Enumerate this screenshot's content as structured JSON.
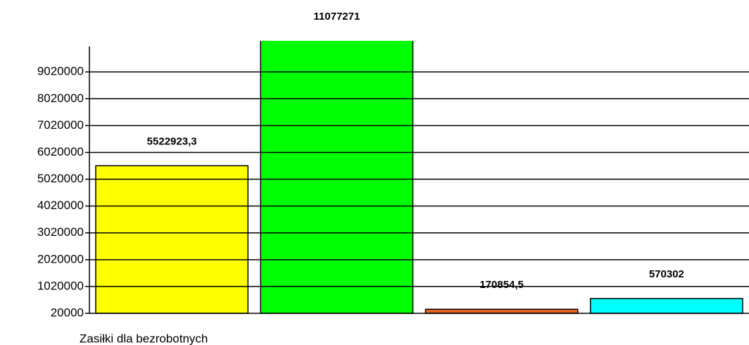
{
  "chart_data": {
    "type": "bar",
    "categories": [
      "Zasiłki dla bezrobotnych",
      null,
      null,
      null
    ],
    "values": [
      5522923.3,
      11077271,
      170854.5,
      570302
    ],
    "value_labels": [
      "5522923,3",
      "11077271",
      "170854,5",
      "570302"
    ],
    "colors": [
      "#ffff00",
      "#00ff00",
      "#e8641e",
      "#00ffff"
    ],
    "ylim": [
      20000,
      10180000
    ],
    "yticks": [
      20000,
      1020000,
      2020000,
      3020000,
      4020000,
      5020000,
      6020000,
      7020000,
      8020000,
      9020000
    ],
    "grid": true
  }
}
